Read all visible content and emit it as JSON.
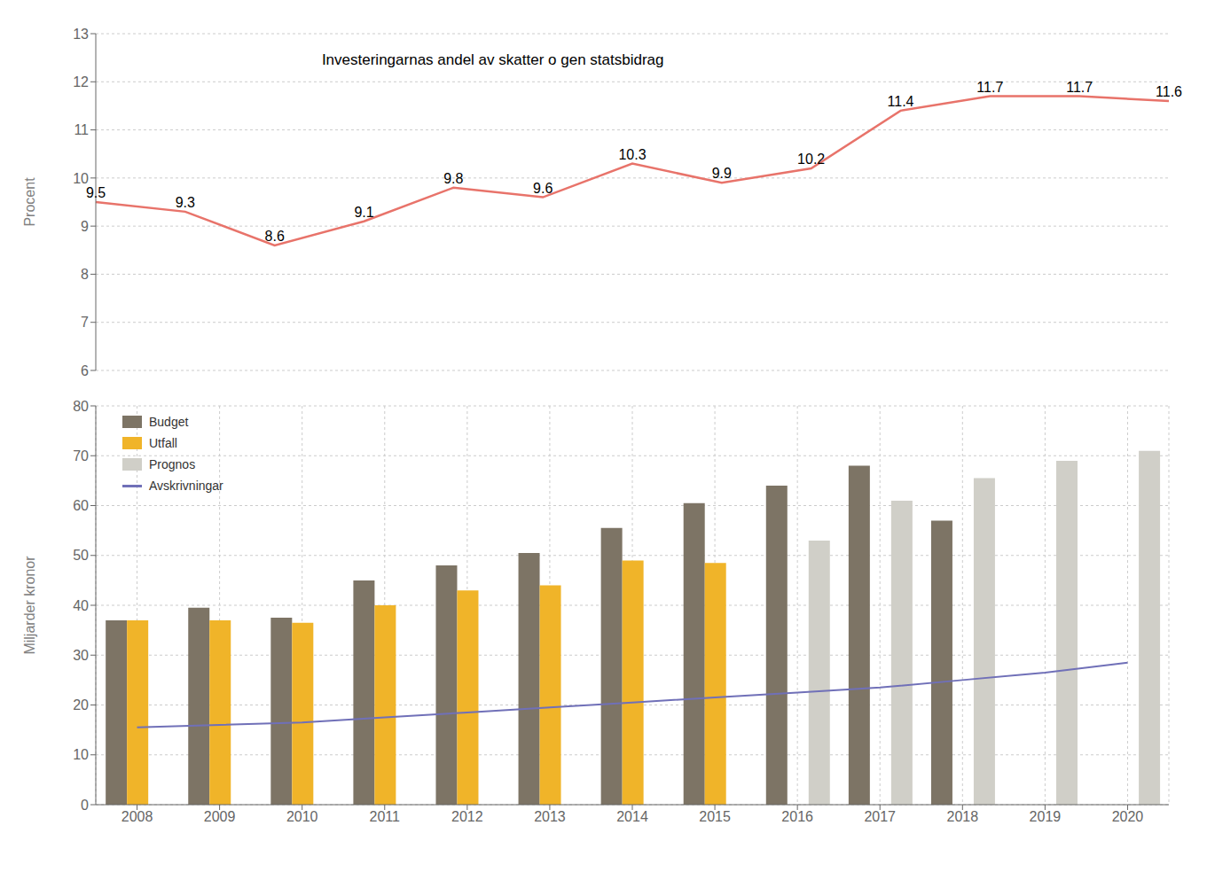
{
  "chart_data": [
    {
      "type": "line",
      "annotations": [
        "Investeringarnas andel av skatter o gen statsbidrag"
      ],
      "ylabel": "Procent",
      "categories": [
        "2008",
        "2009",
        "2010",
        "2011",
        "2012",
        "2013",
        "2014",
        "2015",
        "2016",
        "2017",
        "2018",
        "2019",
        "2020"
      ],
      "values": [
        9.5,
        9.3,
        8.6,
        9.1,
        9.8,
        9.6,
        10.3,
        9.9,
        10.2,
        11.4,
        11.7,
        11.7,
        11.6
      ],
      "color": "#e8736a",
      "ylim": [
        6,
        13
      ],
      "yticks": [
        6,
        7,
        8,
        9,
        10,
        11,
        12,
        13
      ],
      "grid": true,
      "data_labels": true,
      "tick_labels": "y"
    },
    {
      "type": "bar",
      "ylabel": "Miljarder kronor",
      "categories": [
        "2008",
        "2009",
        "2010",
        "2011",
        "2012",
        "2013",
        "2014",
        "2015",
        "2016",
        "2017",
        "2018",
        "2019",
        "2020"
      ],
      "series": [
        {
          "name": "Budget",
          "type": "bar",
          "color": "#7d7465",
          "values": [
            37,
            39.5,
            37.5,
            45,
            48,
            50.5,
            55.5,
            60.5,
            64,
            68,
            57,
            null,
            null
          ]
        },
        {
          "name": "Utfall",
          "type": "bar",
          "color": "#f0b429",
          "values": [
            37,
            37,
            36.5,
            40,
            43,
            44,
            49,
            48.5,
            null,
            null,
            null,
            null,
            null
          ]
        },
        {
          "name": "Prognos",
          "type": "bar",
          "color": "#d0cfc8",
          "values": [
            null,
            null,
            null,
            null,
            null,
            null,
            null,
            null,
            53,
            61,
            65.5,
            69,
            71
          ]
        },
        {
          "name": "Avskrivningar",
          "type": "line",
          "color": "#7070b8",
          "values": [
            15.5,
            16.0,
            16.5,
            17.5,
            18.5,
            19.5,
            20.5,
            21.5,
            22.5,
            23.5,
            25.0,
            26.5,
            28.5
          ]
        }
      ],
      "ylim": [
        0,
        80
      ],
      "yticks": [
        0,
        10,
        20,
        30,
        40,
        50,
        60,
        70,
        80
      ],
      "grid": true,
      "legend": "upper left"
    }
  ]
}
